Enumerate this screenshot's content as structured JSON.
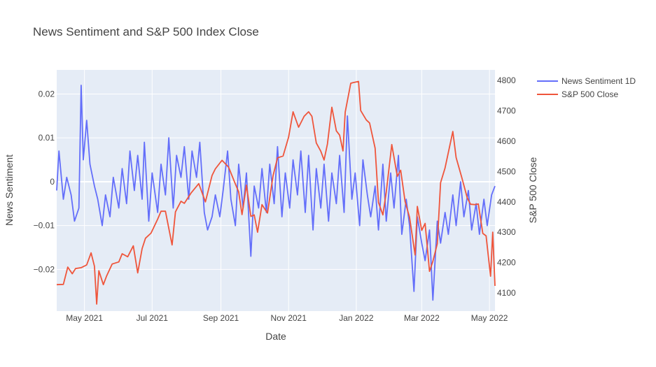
{
  "chart_data": {
    "type": "line",
    "title": "News Sentiment and S&P 500 Index Close",
    "xlabel": "Date",
    "ylabel_left": "News Sentiment",
    "ylabel_right": "S&P 500 Close",
    "x_range": [
      "2021-04-06",
      "2022-05-06"
    ],
    "x_ticks": [
      {
        "date": "2021-05-01",
        "label": "May 2021"
      },
      {
        "date": "2021-07-01",
        "label": "Jul 2021"
      },
      {
        "date": "2021-09-01",
        "label": "Sep 2021"
      },
      {
        "date": "2021-11-01",
        "label": "Nov 2021"
      },
      {
        "date": "2022-01-01",
        "label": "Jan 2022"
      },
      {
        "date": "2022-03-01",
        "label": "Mar 2022"
      },
      {
        "date": "2022-05-01",
        "label": "May 2022"
      }
    ],
    "y_left_range": [
      -0.0295,
      0.0255
    ],
    "y_left_ticks": [
      {
        "value": 0.02,
        "label": "0.02"
      },
      {
        "value": 0.01,
        "label": "0.01"
      },
      {
        "value": 0,
        "label": "0"
      },
      {
        "value": -0.01,
        "label": "−0.01"
      },
      {
        "value": -0.02,
        "label": "−0.02"
      }
    ],
    "y_right_range": [
      4040,
      4835
    ],
    "y_right_ticks": [
      {
        "value": 4800,
        "label": "4800"
      },
      {
        "value": 4700,
        "label": "4700"
      },
      {
        "value": 4600,
        "label": "4600"
      },
      {
        "value": 4500,
        "label": "4500"
      },
      {
        "value": 4400,
        "label": "4400"
      },
      {
        "value": 4300,
        "label": "4300"
      },
      {
        "value": 4200,
        "label": "4200"
      },
      {
        "value": 4100,
        "label": "4100"
      }
    ],
    "grid": true,
    "legend_position": "top-right",
    "series": [
      {
        "name": "News Sentiment 1D",
        "axis": "left",
        "color": "#636efa",
        "points": [
          [
            "2021-04-06",
            -0.002
          ],
          [
            "2021-04-08",
            0.007
          ],
          [
            "2021-04-12",
            -0.004
          ],
          [
            "2021-04-15",
            0.001
          ],
          [
            "2021-04-19",
            -0.003
          ],
          [
            "2021-04-22",
            -0.009
          ],
          [
            "2021-04-26",
            -0.006
          ],
          [
            "2021-04-28",
            0.022
          ],
          [
            "2021-04-30",
            0.005
          ],
          [
            "2021-05-03",
            0.014
          ],
          [
            "2021-05-06",
            0.004
          ],
          [
            "2021-05-10",
            -0.001
          ],
          [
            "2021-05-13",
            -0.004
          ],
          [
            "2021-05-17",
            -0.01
          ],
          [
            "2021-05-20",
            -0.003
          ],
          [
            "2021-05-24",
            -0.008
          ],
          [
            "2021-05-27",
            0.001
          ],
          [
            "2021-06-01",
            -0.006
          ],
          [
            "2021-06-04",
            0.003
          ],
          [
            "2021-06-08",
            -0.005
          ],
          [
            "2021-06-11",
            0.007
          ],
          [
            "2021-06-15",
            -0.002
          ],
          [
            "2021-06-18",
            0.006
          ],
          [
            "2021-06-22",
            -0.004
          ],
          [
            "2021-06-24",
            0.009
          ],
          [
            "2021-06-28",
            -0.009
          ],
          [
            "2021-07-01",
            0.002
          ],
          [
            "2021-07-06",
            -0.007
          ],
          [
            "2021-07-09",
            0.004
          ],
          [
            "2021-07-13",
            -0.003
          ],
          [
            "2021-07-16",
            0.01
          ],
          [
            "2021-07-20",
            -0.006
          ],
          [
            "2021-07-23",
            0.006
          ],
          [
            "2021-07-27",
            0.001
          ],
          [
            "2021-07-30",
            0.008
          ],
          [
            "2021-08-03",
            -0.004
          ],
          [
            "2021-08-06",
            0.007
          ],
          [
            "2021-08-10",
            0.001
          ],
          [
            "2021-08-13",
            0.009
          ],
          [
            "2021-08-17",
            -0.007
          ],
          [
            "2021-08-20",
            -0.011
          ],
          [
            "2021-08-24",
            -0.008
          ],
          [
            "2021-08-27",
            -0.003
          ],
          [
            "2021-08-31",
            -0.008
          ],
          [
            "2021-09-03",
            -0.002
          ],
          [
            "2021-09-07",
            0.007
          ],
          [
            "2021-09-10",
            -0.004
          ],
          [
            "2021-09-14",
            -0.01
          ],
          [
            "2021-09-17",
            0.004
          ],
          [
            "2021-09-21",
            -0.006
          ],
          [
            "2021-09-24",
            0.002
          ],
          [
            "2021-09-28",
            -0.017
          ],
          [
            "2021-10-01",
            -0.001
          ],
          [
            "2021-10-05",
            -0.006
          ],
          [
            "2021-10-08",
            0.003
          ],
          [
            "2021-10-12",
            -0.007
          ],
          [
            "2021-10-15",
            0.004
          ],
          [
            "2021-10-19",
            -0.005
          ],
          [
            "2021-10-22",
            0.008
          ],
          [
            "2021-10-26",
            -0.008
          ],
          [
            "2021-10-29",
            0.002
          ],
          [
            "2021-11-02",
            -0.006
          ],
          [
            "2021-11-05",
            0.005
          ],
          [
            "2021-11-09",
            -0.003
          ],
          [
            "2021-11-12",
            0.007
          ],
          [
            "2021-11-16",
            -0.007
          ],
          [
            "2021-11-19",
            0.006
          ],
          [
            "2021-11-23",
            -0.011
          ],
          [
            "2021-11-26",
            0.003
          ],
          [
            "2021-11-30",
            -0.006
          ],
          [
            "2021-12-03",
            0.004
          ],
          [
            "2021-12-07",
            -0.009
          ],
          [
            "2021-12-10",
            0.002
          ],
          [
            "2021-12-14",
            -0.005
          ],
          [
            "2021-12-17",
            0.006
          ],
          [
            "2021-12-21",
            -0.007
          ],
          [
            "2021-12-24",
            0.015
          ],
          [
            "2021-12-28",
            -0.004
          ],
          [
            "2021-12-31",
            0.002
          ],
          [
            "2022-01-04",
            -0.01
          ],
          [
            "2022-01-07",
            0.005
          ],
          [
            "2022-01-11",
            -0.003
          ],
          [
            "2022-01-14",
            -0.008
          ],
          [
            "2022-01-18",
            -0.001
          ],
          [
            "2022-01-21",
            -0.011
          ],
          [
            "2022-01-25",
            0.004
          ],
          [
            "2022-01-28",
            -0.009
          ],
          [
            "2022-02-01",
            0.002
          ],
          [
            "2022-02-04",
            -0.006
          ],
          [
            "2022-02-08",
            0.006
          ],
          [
            "2022-02-11",
            -0.012
          ],
          [
            "2022-02-15",
            -0.004
          ],
          [
            "2022-02-18",
            -0.01
          ],
          [
            "2022-02-22",
            -0.025
          ],
          [
            "2022-02-25",
            -0.008
          ],
          [
            "2022-03-01",
            -0.014
          ],
          [
            "2022-03-04",
            -0.018
          ],
          [
            "2022-03-08",
            -0.011
          ],
          [
            "2022-03-11",
            -0.027
          ],
          [
            "2022-03-15",
            -0.009
          ],
          [
            "2022-03-18",
            -0.014
          ],
          [
            "2022-03-22",
            -0.007
          ],
          [
            "2022-03-25",
            -0.012
          ],
          [
            "2022-03-29",
            -0.003
          ],
          [
            "2022-04-01",
            -0.01
          ],
          [
            "2022-04-05",
            0.0
          ],
          [
            "2022-04-08",
            -0.008
          ],
          [
            "2022-04-12",
            -0.002
          ],
          [
            "2022-04-15",
            -0.011
          ],
          [
            "2022-04-19",
            -0.005
          ],
          [
            "2022-04-22",
            -0.012
          ],
          [
            "2022-04-26",
            -0.004
          ],
          [
            "2022-04-29",
            -0.01
          ],
          [
            "2022-05-03",
            -0.003
          ],
          [
            "2022-05-06",
            -0.001
          ]
        ]
      },
      {
        "name": "S&P 500 Close",
        "axis": "right",
        "color": "#ef553b",
        "points": [
          [
            "2021-04-06",
            4127
          ],
          [
            "2021-04-12",
            4128
          ],
          [
            "2021-04-16",
            4185
          ],
          [
            "2021-04-20",
            4163
          ],
          [
            "2021-04-23",
            4180
          ],
          [
            "2021-04-28",
            4183
          ],
          [
            "2021-05-03",
            4192
          ],
          [
            "2021-05-07",
            4232
          ],
          [
            "2021-05-10",
            4188
          ],
          [
            "2021-05-12",
            4063
          ],
          [
            "2021-05-14",
            4173
          ],
          [
            "2021-05-18",
            4127
          ],
          [
            "2021-05-21",
            4156
          ],
          [
            "2021-05-26",
            4195
          ],
          [
            "2021-06-01",
            4202
          ],
          [
            "2021-06-04",
            4229
          ],
          [
            "2021-06-09",
            4219
          ],
          [
            "2021-06-14",
            4255
          ],
          [
            "2021-06-18",
            4166
          ],
          [
            "2021-06-22",
            4246
          ],
          [
            "2021-06-25",
            4280
          ],
          [
            "2021-06-30",
            4297
          ],
          [
            "2021-07-06",
            4343
          ],
          [
            "2021-07-09",
            4369
          ],
          [
            "2021-07-13",
            4369
          ],
          [
            "2021-07-19",
            4258
          ],
          [
            "2021-07-22",
            4367
          ],
          [
            "2021-07-27",
            4402
          ],
          [
            "2021-07-30",
            4395
          ],
          [
            "2021-08-05",
            4429
          ],
          [
            "2021-08-12",
            4460
          ],
          [
            "2021-08-18",
            4400
          ],
          [
            "2021-08-24",
            4487
          ],
          [
            "2021-08-27",
            4509
          ],
          [
            "2021-09-02",
            4537
          ],
          [
            "2021-09-08",
            4514
          ],
          [
            "2021-09-13",
            4468
          ],
          [
            "2021-09-17",
            4433
          ],
          [
            "2021-09-20",
            4358
          ],
          [
            "2021-09-24",
            4455
          ],
          [
            "2021-09-28",
            4352
          ],
          [
            "2021-10-01",
            4357
          ],
          [
            "2021-10-04",
            4300
          ],
          [
            "2021-10-08",
            4391
          ],
          [
            "2021-10-13",
            4363
          ],
          [
            "2021-10-18",
            4486
          ],
          [
            "2021-10-22",
            4545
          ],
          [
            "2021-10-27",
            4551
          ],
          [
            "2021-11-01",
            4613
          ],
          [
            "2021-11-05",
            4697
          ],
          [
            "2021-11-10",
            4646
          ],
          [
            "2021-11-15",
            4682
          ],
          [
            "2021-11-19",
            4697
          ],
          [
            "2021-11-22",
            4682
          ],
          [
            "2021-11-26",
            4594
          ],
          [
            "2021-11-30",
            4567
          ],
          [
            "2021-12-03",
            4538
          ],
          [
            "2021-12-06",
            4591
          ],
          [
            "2021-12-10",
            4712
          ],
          [
            "2021-12-14",
            4634
          ],
          [
            "2021-12-17",
            4620
          ],
          [
            "2021-12-20",
            4568
          ],
          [
            "2021-12-22",
            4696
          ],
          [
            "2021-12-27",
            4791
          ],
          [
            "2021-12-29",
            4793
          ],
          [
            "2022-01-03",
            4797
          ],
          [
            "2022-01-05",
            4701
          ],
          [
            "2022-01-10",
            4670
          ],
          [
            "2022-01-13",
            4660
          ],
          [
            "2022-01-18",
            4577
          ],
          [
            "2022-01-21",
            4398
          ],
          [
            "2022-01-25",
            4357
          ],
          [
            "2022-01-28",
            4432
          ],
          [
            "2022-02-02",
            4589
          ],
          [
            "2022-02-07",
            4484
          ],
          [
            "2022-02-10",
            4504
          ],
          [
            "2022-02-14",
            4401
          ],
          [
            "2022-02-18",
            4349
          ],
          [
            "2022-02-23",
            4225
          ],
          [
            "2022-02-25",
            4385
          ],
          [
            "2022-03-01",
            4306
          ],
          [
            "2022-03-04",
            4329
          ],
          [
            "2022-03-08",
            4171
          ],
          [
            "2022-03-11",
            4204
          ],
          [
            "2022-03-15",
            4262
          ],
          [
            "2022-03-18",
            4463
          ],
          [
            "2022-03-22",
            4512
          ],
          [
            "2022-03-29",
            4632
          ],
          [
            "2022-04-01",
            4546
          ],
          [
            "2022-04-06",
            4481
          ],
          [
            "2022-04-11",
            4413
          ],
          [
            "2022-04-14",
            4392
          ],
          [
            "2022-04-18",
            4391
          ],
          [
            "2022-04-21",
            4393
          ],
          [
            "2022-04-25",
            4296
          ],
          [
            "2022-04-28",
            4288
          ],
          [
            "2022-05-02",
            4155
          ],
          [
            "2022-05-04",
            4300
          ],
          [
            "2022-05-06",
            4123
          ]
        ]
      }
    ]
  }
}
